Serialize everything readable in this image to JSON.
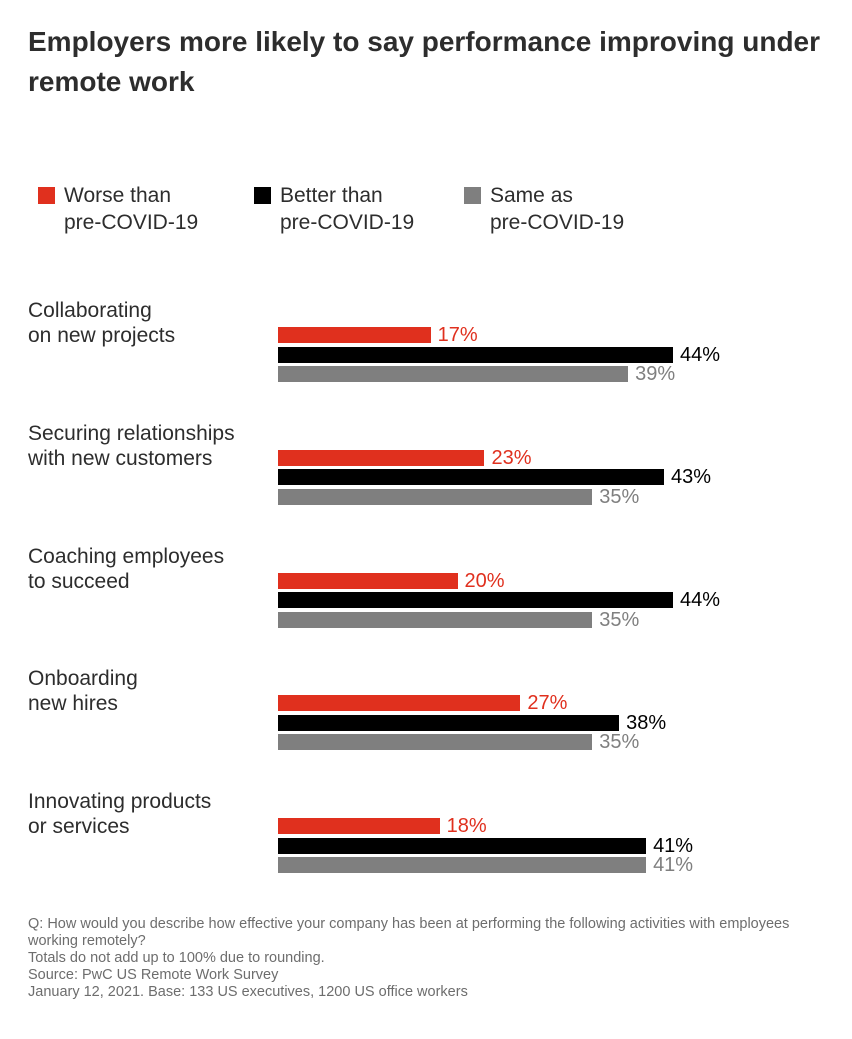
{
  "chart_data": {
    "type": "bar",
    "orientation": "horizontal",
    "title": "Employers more likely to say performance improving under remote work",
    "legend_position": "top",
    "grid": false,
    "categories": [
      "Collaborating\non new projects",
      "Securing relationships\nwith new customers",
      "Coaching employees\nto succeed",
      "Onboarding\nnew hires",
      "Innovating products\nor services"
    ],
    "series": [
      {
        "name": "Worse than\npre-COVID-19",
        "color": "#e0301e",
        "values": [
          17,
          23,
          20,
          27,
          18
        ],
        "labels": [
          "17%",
          "23%",
          "20%",
          "27%",
          "18%"
        ]
      },
      {
        "name": "Better than\npre-COVID-19",
        "color": "#000000",
        "values": [
          44,
          43,
          44,
          38,
          41
        ],
        "labels": [
          "44%",
          "43%",
          "44%",
          "38%",
          "41%"
        ]
      },
      {
        "name": "Same as\npre-COVID-19",
        "color": "#7f7f7f",
        "values": [
          39,
          35,
          35,
          35,
          41
        ],
        "labels": [
          "39%",
          "35%",
          "35%",
          "35%",
          "41%"
        ]
      }
    ],
    "xlim": [
      0,
      44
    ]
  },
  "footnotes": [
    "Q: How would you describe how effective your company has been at performing the following activities with employees working remotely?",
    "Totals do not add up to 100% due to rounding.",
    "Source: PwC US Remote Work Survey",
    "January 12, 2021. Base: 133 US executives, 1200 US office workers"
  ]
}
